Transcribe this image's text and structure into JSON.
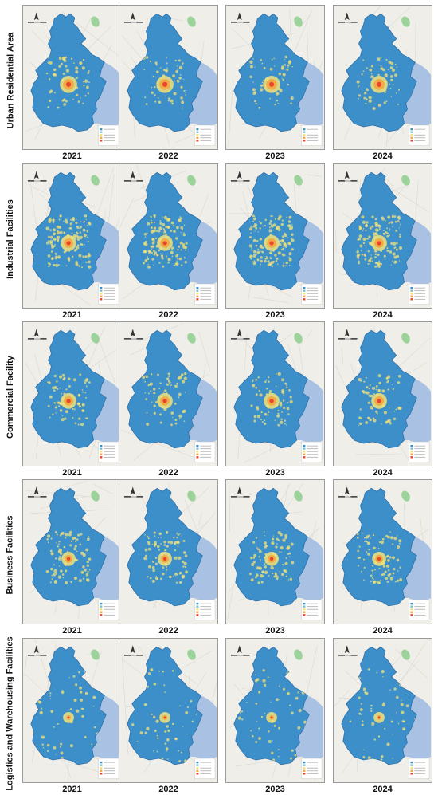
{
  "rows": [
    {
      "label": "Urban Residential Area",
      "years": [
        "2021",
        "2022",
        "2023",
        "2024"
      ]
    },
    {
      "label": "Industrial Facilities",
      "years": [
        "2021",
        "2022",
        "2023",
        "2024"
      ]
    },
    {
      "label": "Commercial Facility",
      "years": [
        "2021",
        "2022",
        "2023",
        "2024"
      ]
    },
    {
      "label": "Business Facilities",
      "years": [
        "2021",
        "2022",
        "2023",
        "2024"
      ]
    },
    {
      "label": "Logistics and Warehousing Facilities",
      "years": [
        "2021",
        "2022",
        "2023",
        "2024"
      ]
    }
  ],
  "colors": {
    "land": "#efeee9",
    "roads": "#d9d8d0",
    "sea": "#a9c1e3",
    "region_fill": "#3d8fc9",
    "region_edge": "#2f6fa8",
    "hotspot_low": "#f2e27a",
    "hotspot_high": "#e8452c",
    "park": "#9cd39a"
  },
  "map_icons": [
    "north-arrow-icon",
    "scale-bar",
    "legend-box"
  ]
}
